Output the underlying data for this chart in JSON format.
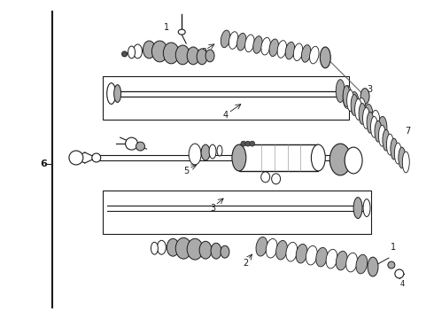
{
  "bg_color": "#ffffff",
  "line_color": "#1a1a1a",
  "gray_fill": "#aaaaaa",
  "dark_fill": "#555555",
  "figsize": [
    4.9,
    3.6
  ],
  "dpi": 100
}
